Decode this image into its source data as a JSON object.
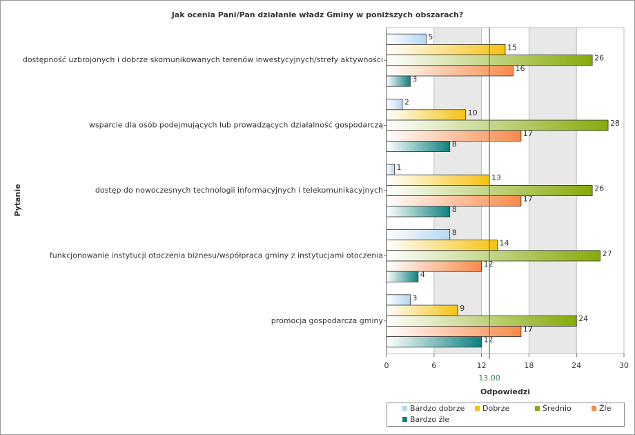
{
  "chart_data": {
    "type": "hbar",
    "title": "Jak ocenia Pani/Pan działanie władz Gminy w poniższych obszarach?",
    "y_label": "Pytanie",
    "x_label": "Odpowiedzi",
    "categories": [
      "dostępność uzbrojonych i dobrze skomunikowanych terenów inwestycyjnych/strefy aktywności",
      "wsparcie dla osób podejmujących lub prowadzących działalność gospodarczą",
      "dostęp do nowoczesnych technologii informacyjnych i telekomunikacyjnych",
      "funkcjonowanie instytucji otoczenia biznesu/współpraca gminy z instytucjami otoczenia",
      "promocja gospodarcza gminy"
    ],
    "series": [
      {
        "name": "Bardzo dobrze",
        "color": "#b5d6f2",
        "values": [
          5,
          2,
          1,
          8,
          3
        ]
      },
      {
        "name": "Dobrze",
        "color": "#f5c211",
        "values": [
          15,
          10,
          13,
          14,
          9
        ]
      },
      {
        "name": "Średnio",
        "color": "#86aa0a",
        "values": [
          26,
          28,
          26,
          27,
          24
        ]
      },
      {
        "name": "Źle",
        "color": "#f78a4a",
        "values": [
          16,
          17,
          17,
          12,
          17
        ]
      },
      {
        "name": "Bardzo źle",
        "color": "#0e8080",
        "values": [
          3,
          8,
          8,
          4,
          12
        ]
      }
    ],
    "xlim": [
      0,
      30
    ],
    "xticks": [
      0,
      6,
      12,
      18,
      24,
      30
    ],
    "reference_line": {
      "value": 13,
      "label": "13.00",
      "color": "#2e8b57"
    },
    "grid": true
  }
}
